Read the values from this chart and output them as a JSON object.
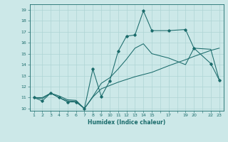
{
  "xlabel": "Humidex (Indice chaleur)",
  "ylabel": "",
  "background_color": "#cce8e8",
  "line_color": "#1a6b6b",
  "grid_color": "#afd4d4",
  "xlim": [
    0.5,
    23.5
  ],
  "ylim": [
    9.8,
    19.5
  ],
  "xticks_major": [
    1,
    2,
    3,
    4,
    5,
    6,
    7,
    8,
    9,
    10,
    11,
    12,
    13,
    14,
    15,
    16,
    17,
    18,
    19,
    20,
    21,
    22,
    23
  ],
  "xtick_labels": [
    "1",
    "2",
    "3",
    "4",
    "5",
    "6",
    "7",
    "8",
    "9",
    "10",
    "11",
    "12",
    "13",
    "14",
    "15",
    "",
    "17",
    "",
    "19",
    "20",
    "",
    "22",
    "23"
  ],
  "yticks": [
    10,
    11,
    12,
    13,
    14,
    15,
    16,
    17,
    18,
    19
  ],
  "line1_x": [
    1,
    2,
    3,
    4,
    5,
    6,
    7,
    8,
    9,
    10,
    11,
    12,
    13,
    14,
    15,
    17,
    19,
    20,
    22,
    23
  ],
  "line1_y": [
    11.0,
    10.7,
    11.4,
    11.0,
    10.6,
    10.6,
    10.0,
    13.6,
    11.1,
    12.5,
    15.2,
    16.6,
    16.7,
    18.9,
    17.1,
    17.1,
    17.2,
    15.5,
    14.1,
    12.6
  ],
  "line2_x": [
    1,
    2,
    3,
    4,
    5,
    6,
    7,
    8,
    9,
    10,
    11,
    12,
    13,
    14,
    15,
    17,
    19,
    20,
    22,
    23
  ],
  "line2_y": [
    11.0,
    11.0,
    11.4,
    11.0,
    10.7,
    10.65,
    10.0,
    11.05,
    11.8,
    12.1,
    12.4,
    12.65,
    12.9,
    13.1,
    13.3,
    13.9,
    14.45,
    14.75,
    15.3,
    15.5
  ],
  "line3_x": [
    1,
    2,
    3,
    4,
    5,
    6,
    7,
    8,
    9,
    10,
    11,
    12,
    13,
    14,
    15,
    17,
    19,
    20,
    22,
    23
  ],
  "line3_y": [
    11.0,
    10.9,
    11.4,
    11.15,
    10.8,
    10.75,
    10.0,
    11.1,
    12.3,
    12.8,
    13.6,
    14.5,
    15.5,
    15.9,
    15.0,
    14.6,
    14.0,
    15.5,
    15.4,
    12.6
  ]
}
